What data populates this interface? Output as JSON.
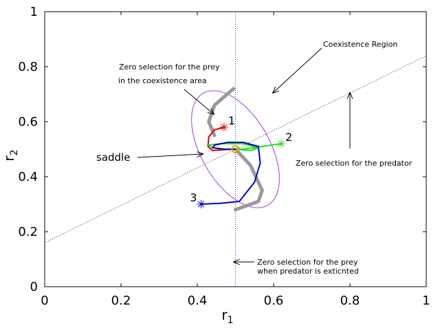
{
  "chart_data": {
    "type": "line",
    "xlabel": "r",
    "xlabel_sub": "1",
    "ylabel": "r",
    "ylabel_sub": "2",
    "xlim": [
      0,
      1
    ],
    "ylim": [
      0,
      1
    ],
    "xticks": [
      "0",
      "0.2",
      "0.4",
      "0.6",
      "0.8",
      "1"
    ],
    "yticks": [
      "0",
      "0.2",
      "0.4",
      "0.6",
      "0.8",
      "1"
    ],
    "grid": false,
    "colors": {
      "ellipse": "#b266e6",
      "gray_band": "#999999",
      "trajectory_1": "#dd0000",
      "trajectory_2": "#22dd22",
      "trajectory_3": "#0000cc",
      "vertical_line": "#2222cc",
      "saddle_marker": "#ee9900"
    },
    "coexistence_ellipse": {
      "center": [
        0.5,
        0.5
      ],
      "semi_axes": [
        0.09,
        0.235
      ],
      "rotation_deg": -30
    },
    "prey_null_curve": [
      [
        0.445,
        0.55
      ],
      [
        0.43,
        0.6
      ],
      [
        0.445,
        0.66
      ],
      [
        0.495,
        0.72
      ],
      [
        0.5,
        0.5
      ],
      [
        0.54,
        0.44
      ],
      [
        0.57,
        0.35
      ],
      [
        0.56,
        0.31
      ],
      [
        0.5,
        0.28
      ]
    ],
    "predator_null_line": {
      "x": [
        0,
        1
      ],
      "y": [
        0.16,
        0.84
      ]
    },
    "prey_zero_line_x": 0.5,
    "saddle": [
      0.5,
      0.5
    ],
    "series": [
      {
        "label": "1",
        "start": [
          0.47,
          0.58
        ],
        "points": [
          [
            0.47,
            0.58
          ],
          [
            0.445,
            0.57
          ],
          [
            0.43,
            0.545
          ],
          [
            0.428,
            0.51
          ],
          [
            0.44,
            0.495
          ],
          [
            0.47,
            0.498
          ],
          [
            0.5,
            0.5
          ]
        ]
      },
      {
        "label": "2",
        "start": [
          0.62,
          0.52
        ],
        "points": [
          [
            0.62,
            0.52
          ],
          [
            0.57,
            0.51
          ],
          [
            0.52,
            0.5
          ],
          [
            0.475,
            0.5
          ],
          [
            0.44,
            0.505
          ],
          [
            0.43,
            0.515
          ],
          [
            0.46,
            0.52
          ],
          [
            0.52,
            0.52
          ],
          [
            0.56,
            0.505
          ],
          [
            0.54,
            0.495
          ],
          [
            0.5,
            0.5
          ]
        ]
      },
      {
        "label": "3",
        "start": [
          0.41,
          0.3
        ],
        "points": [
          [
            0.41,
            0.3
          ],
          [
            0.46,
            0.303
          ],
          [
            0.51,
            0.31
          ],
          [
            0.55,
            0.38
          ],
          [
            0.565,
            0.45
          ],
          [
            0.56,
            0.51
          ],
          [
            0.52,
            0.525
          ],
          [
            0.48,
            0.525
          ],
          [
            0.445,
            0.515
          ],
          [
            0.44,
            0.505
          ],
          [
            0.47,
            0.5
          ],
          [
            0.5,
            0.5
          ]
        ]
      }
    ],
    "annotations": {
      "coexistence": "Coexistence Region",
      "prey_coexist_line1": "Zero selection for the prey",
      "prey_coexist_line2": "in the coexistence area",
      "saddle": "saddle",
      "predator": "Zero selection for the predator",
      "prey_extinct_line1": "Zero selection for the prey",
      "prey_extinct_line2": "when predator is exticnted"
    }
  }
}
